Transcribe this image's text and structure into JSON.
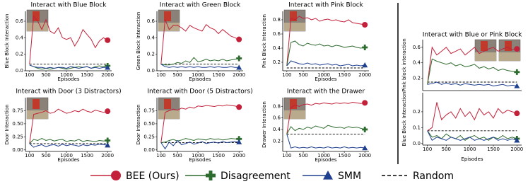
{
  "legend": [
    {
      "name": "BEE (Ours)",
      "color": "#c3213a",
      "marker": "circle"
    },
    {
      "name": "Disagreement",
      "color": "#2e6b2e",
      "marker": "plus"
    },
    {
      "name": "SMM",
      "color": "#1f3f8f",
      "marker": "triangle"
    },
    {
      "name": "Random",
      "color": "#000000",
      "style": "dashed"
    }
  ],
  "chart_data": [
    {
      "type": "line",
      "title": "Interact with Blue Block",
      "y_label": "Blue Block Interaction",
      "x_label": "Episodes",
      "x": [
        100,
        200,
        300,
        400,
        500,
        600,
        700,
        800,
        900,
        1000,
        1100,
        1200,
        1300,
        1400,
        1500,
        1600,
        1700,
        1800,
        1900,
        2000
      ],
      "xlim": [
        0,
        2100
      ],
      "xticks": [
        100,
        500,
        1000,
        1500,
        2000
      ],
      "ylim": [
        0,
        0.72
      ],
      "yticks": [
        {
          "value": 0,
          "label": "0.0"
        },
        0.2,
        0.4,
        0.6
      ],
      "random": 0.08,
      "series": [
        {
          "color": "#c3213a",
          "marker": "circle",
          "values": [
            0.08,
            0.66,
            0.6,
            0.5,
            0.62,
            0.48,
            0.45,
            0.52,
            0.4,
            0.38,
            0.4,
            0.3,
            0.38,
            0.5,
            0.44,
            0.38,
            0.28,
            0.36,
            0.4,
            0.37
          ]
        },
        {
          "color": "#2e6b2e",
          "marker": "plus",
          "values": [
            0.07,
            0.05,
            0.03,
            0.02,
            0.03,
            0.02,
            0.03,
            0.04,
            0.03,
            0.02,
            0.03,
            0.04,
            0.05,
            0.04,
            0.05,
            0.03,
            0.05,
            0.06,
            0.05,
            0.06
          ]
        },
        {
          "color": "#1f3f8f",
          "marker": "triangle",
          "values": [
            0.07,
            0.05,
            0.04,
            0.04,
            0.03,
            0.04,
            0.03,
            0.04,
            0.04,
            0.03,
            0.05,
            0.04,
            0.03,
            0.04,
            0.05,
            0.03,
            0.04,
            0.03,
            0.04,
            0.04
          ]
        }
      ]
    },
    {
      "type": "line",
      "title": "Interact with Green Block",
      "y_label": "Green Block Interaction",
      "x_label": "Episodes",
      "x": [
        100,
        200,
        300,
        400,
        500,
        600,
        700,
        800,
        900,
        1000,
        1100,
        1200,
        1300,
        1400,
        1500,
        1600,
        1700,
        1800,
        1900,
        2000
      ],
      "xlim": [
        0,
        2100
      ],
      "xticks": [
        100,
        500,
        1000,
        1500,
        2000
      ],
      "ylim": [
        0,
        0.72
      ],
      "yticks": [
        {
          "value": 0,
          "label": "0.0"
        },
        0.2,
        0.4,
        0.6
      ],
      "random": 0.08,
      "series": [
        {
          "color": "#c3213a",
          "marker": "circle",
          "values": [
            0.08,
            0.62,
            0.5,
            0.55,
            0.55,
            0.52,
            0.48,
            0.55,
            0.52,
            0.5,
            0.48,
            0.56,
            0.52,
            0.5,
            0.45,
            0.5,
            0.46,
            0.42,
            0.4,
            0.38
          ]
        },
        {
          "color": "#2e6b2e",
          "marker": "plus",
          "values": [
            0.08,
            0.07,
            0.07,
            0.08,
            0.1,
            0.09,
            0.12,
            0.1,
            0.16,
            0.11,
            0.12,
            0.14,
            0.12,
            0.13,
            0.12,
            0.14,
            0.12,
            0.13,
            0.14,
            0.15
          ]
        },
        {
          "color": "#1f3f8f",
          "marker": "triangle",
          "values": [
            0.08,
            0.05,
            0.04,
            0.05,
            0.04,
            0.05,
            0.04,
            0.05,
            0.04,
            0.05,
            0.04,
            0.04,
            0.05,
            0.04,
            0.05,
            0.04,
            0.04,
            0.05,
            0.04,
            0.04
          ]
        }
      ]
    },
    {
      "type": "line",
      "title": "Interact with Pink Block",
      "y_label": "Pink Block Interaction",
      "x_label": "Episodes",
      "x": [
        100,
        200,
        300,
        400,
        500,
        600,
        700,
        800,
        900,
        1000,
        1100,
        1200,
        1300,
        1400,
        1500,
        1600,
        1700,
        1800,
        1900,
        2000
      ],
      "xlim": [
        0,
        2100
      ],
      "xticks": [
        100,
        500,
        1000,
        1500,
        2000
      ],
      "ylim": [
        0.08,
        0.92
      ],
      "yticks": [
        0.2,
        0.4,
        0.6,
        0.8
      ],
      "random": 0.12,
      "series": [
        {
          "color": "#c3213a",
          "marker": "circle",
          "values": [
            0.15,
            0.82,
            0.8,
            0.85,
            0.82,
            0.83,
            0.8,
            0.82,
            0.78,
            0.8,
            0.81,
            0.79,
            0.8,
            0.78,
            0.77,
            0.8,
            0.76,
            0.75,
            0.74,
            0.73
          ]
        },
        {
          "color": "#2e6b2e",
          "marker": "plus",
          "values": [
            0.15,
            0.48,
            0.5,
            0.45,
            0.43,
            0.47,
            0.45,
            0.44,
            0.46,
            0.43,
            0.44,
            0.42,
            0.44,
            0.43,
            0.41,
            0.42,
            0.43,
            0.41,
            0.4,
            0.41
          ]
        },
        {
          "color": "#1f3f8f",
          "marker": "triangle",
          "values": [
            0.15,
            0.22,
            0.2,
            0.18,
            0.17,
            0.19,
            0.17,
            0.18,
            0.16,
            0.17,
            0.18,
            0.16,
            0.17,
            0.15,
            0.16,
            0.17,
            0.15,
            0.16,
            0.15,
            0.16
          ]
        }
      ]
    },
    {
      "type": "line",
      "title": "Interact with Door (3 Distractors)",
      "y_label": "Door Interaction",
      "x_label": "Episodes",
      "x": [
        100,
        200,
        300,
        400,
        500,
        600,
        700,
        800,
        900,
        1000,
        1100,
        1200,
        1300,
        1400,
        1500,
        1600,
        1700,
        1800,
        1900,
        2000
      ],
      "xlim": [
        0,
        2100
      ],
      "xticks": [
        100,
        500,
        1000,
        1500,
        2000
      ],
      "ylim": [
        -0.03,
        1.0
      ],
      "yticks": [
        {
          "value": 0,
          "label": "0.00"
        },
        0.25,
        {
          "value": 0.5,
          "label": "0.50"
        },
        0.75
      ],
      "random": 0.12,
      "series": [
        {
          "color": "#c3213a",
          "marker": "circle",
          "values": [
            0.12,
            0.68,
            0.7,
            0.72,
            0.75,
            0.7,
            0.72,
            0.78,
            0.74,
            0.7,
            0.72,
            0.75,
            0.73,
            0.78,
            0.74,
            0.72,
            0.76,
            0.74,
            0.72,
            0.74
          ]
        },
        {
          "color": "#2e6b2e",
          "marker": "plus",
          "values": [
            0.12,
            0.2,
            0.18,
            0.22,
            0.18,
            0.2,
            0.17,
            0.19,
            0.2,
            0.16,
            0.18,
            0.17,
            0.2,
            0.16,
            0.18,
            0.17,
            0.16,
            0.18,
            0.17,
            0.18
          ]
        },
        {
          "color": "#1f3f8f",
          "marker": "triangle",
          "values": [
            0.12,
            0.05,
            0.08,
            0.1,
            0.06,
            0.09,
            0.1,
            0.07,
            0.11,
            0.08,
            0.1,
            0.09,
            0.07,
            0.1,
            0.08,
            0.1,
            0.09,
            0.11,
            0.1,
            0.09
          ]
        }
      ]
    },
    {
      "type": "line",
      "title": "Interact with Door (5 Distractors)",
      "y_label": "Door Interaction",
      "x_label": "Episodes",
      "x": [
        100,
        200,
        300,
        400,
        500,
        600,
        700,
        800,
        900,
        1000,
        1100,
        1200,
        1300,
        1400,
        1500,
        1600,
        1700,
        1800,
        1900,
        2000
      ],
      "xlim": [
        0,
        2100
      ],
      "xticks": [
        100,
        500,
        1000,
        1500,
        2000
      ],
      "ylim": [
        -0.03,
        1.0
      ],
      "yticks": [
        {
          "value": 0,
          "label": "0.00"
        },
        0.25,
        {
          "value": 0.5,
          "label": "0.50"
        },
        0.75
      ],
      "random": 0.14,
      "series": [
        {
          "color": "#c3213a",
          "marker": "circle",
          "values": [
            0.14,
            0.72,
            0.75,
            0.78,
            0.76,
            0.8,
            0.78,
            0.82,
            0.8,
            0.84,
            0.83,
            0.85,
            0.84,
            0.83,
            0.85,
            0.84,
            0.86,
            0.85,
            0.84,
            0.82
          ]
        },
        {
          "color": "#2e6b2e",
          "marker": "plus",
          "values": [
            0.14,
            0.15,
            0.18,
            0.2,
            0.17,
            0.19,
            0.22,
            0.2,
            0.18,
            0.21,
            0.2,
            0.19,
            0.22,
            0.2,
            0.21,
            0.19,
            0.2,
            0.22,
            0.21,
            0.21
          ]
        },
        {
          "color": "#1f3f8f",
          "marker": "triangle",
          "values": [
            0.14,
            0.02,
            0.15,
            0.08,
            0.18,
            0.1,
            0.12,
            0.15,
            0.11,
            0.13,
            0.16,
            0.12,
            0.14,
            0.15,
            0.13,
            0.16,
            0.14,
            0.15,
            0.16,
            0.15
          ]
        }
      ]
    },
    {
      "type": "line",
      "title": "Interact with the Drawer",
      "y_label": "Drawer Interaction",
      "x_label": "Episodes",
      "x": [
        100,
        200,
        300,
        400,
        500,
        600,
        700,
        800,
        900,
        1000,
        1100,
        1200,
        1300,
        1400,
        1500,
        1600,
        1700,
        1800,
        1900,
        2000
      ],
      "xlim": [
        0,
        2100
      ],
      "xticks": [
        100,
        500,
        1000,
        1500,
        2000
      ],
      "ylim": [
        0.02,
        0.95
      ],
      "yticks": [
        0.2,
        0.4,
        0.6,
        0.8
      ],
      "random": 0.32,
      "series": [
        {
          "color": "#c3213a",
          "marker": "circle",
          "values": [
            0.32,
            0.78,
            0.82,
            0.8,
            0.83,
            0.84,
            0.82,
            0.85,
            0.84,
            0.86,
            0.85,
            0.84,
            0.86,
            0.85,
            0.86,
            0.85,
            0.87,
            0.86,
            0.85,
            0.86
          ]
        },
        {
          "color": "#2e6b2e",
          "marker": "plus",
          "values": [
            0.32,
            0.45,
            0.38,
            0.42,
            0.4,
            0.44,
            0.42,
            0.46,
            0.44,
            0.42,
            0.47,
            0.45,
            0.43,
            0.44,
            0.42,
            0.45,
            0.43,
            0.44,
            0.42,
            0.4
          ]
        },
        {
          "color": "#1f3f8f",
          "marker": "triangle",
          "values": [
            0.32,
            0.08,
            0.1,
            0.08,
            0.09,
            0.08,
            0.1,
            0.08,
            0.09,
            0.08,
            0.1,
            0.08,
            0.09,
            0.08,
            0.1,
            0.08,
            0.09,
            0.08,
            0.09,
            0.08
          ]
        }
      ]
    },
    {
      "type": "line",
      "title": "Interact with Blue or Pink Block",
      "y_label": "Pink block interaction",
      "x": [
        100,
        200,
        300,
        400,
        500,
        600,
        700,
        800,
        900,
        1000,
        1100,
        1200,
        1300,
        1400,
        1500,
        1600,
        1700,
        1800,
        1900,
        2000
      ],
      "xlim": [
        0,
        2100
      ],
      "ylim": [
        0.04,
        0.7
      ],
      "yticks": [
        0.2,
        0.4,
        0.6
      ],
      "random": 0.15,
      "series": [
        {
          "color": "#c3213a",
          "marker": "circle",
          "values": [
            0.12,
            0.6,
            0.5,
            0.55,
            0.6,
            0.52,
            0.55,
            0.58,
            0.5,
            0.55,
            0.6,
            0.52,
            0.55,
            0.58,
            0.6,
            0.55,
            0.58,
            0.6,
            0.57,
            0.58
          ]
        },
        {
          "color": "#2e6b2e",
          "marker": "plus",
          "values": [
            0.12,
            0.45,
            0.42,
            0.4,
            0.38,
            0.4,
            0.36,
            0.38,
            0.35,
            0.36,
            0.38,
            0.33,
            0.35,
            0.32,
            0.34,
            0.3,
            0.32,
            0.3,
            0.29,
            0.28
          ]
        },
        {
          "color": "#1f3f8f",
          "marker": "triangle",
          "values": [
            0.12,
            0.13,
            0.15,
            0.12,
            0.14,
            0.12,
            0.13,
            0.11,
            0.13,
            0.12,
            0.11,
            0.12,
            0.11,
            0.12,
            0.1,
            0.11,
            0.12,
            0.1,
            0.11,
            0.1
          ]
        }
      ]
    },
    {
      "type": "line",
      "y_label": "Blue Block Interaction",
      "x_label": "Episodes",
      "x": [
        100,
        200,
        300,
        400,
        500,
        600,
        700,
        800,
        900,
        1000,
        1100,
        1200,
        1300,
        1400,
        1500,
        1600,
        1700,
        1800,
        1900,
        2000
      ],
      "xlim": [
        0,
        2100
      ],
      "xticks": [
        100,
        500,
        1000,
        1500,
        2000
      ],
      "ylim": [
        -0.01,
        0.32
      ],
      "yticks": [
        {
          "value": 0,
          "label": "0.0"
        },
        0.1,
        0.2
      ],
      "random": 0.08,
      "series": [
        {
          "color": "#c3213a",
          "marker": "circle",
          "values": [
            0.08,
            0.1,
            0.26,
            0.15,
            0.18,
            0.2,
            0.16,
            0.22,
            0.17,
            0.2,
            0.15,
            0.22,
            0.18,
            0.2,
            0.16,
            0.22,
            0.19,
            0.21,
            0.2,
            0.19
          ]
        },
        {
          "color": "#2e6b2e",
          "marker": "plus",
          "values": [
            0.08,
            0.04,
            0.05,
            0.03,
            0.06,
            0.04,
            0.03,
            0.05,
            0.02,
            0.04,
            0.05,
            0.03,
            0.04,
            0.02,
            0.04,
            0.03,
            0.05,
            0.03,
            0.04,
            0.03
          ]
        },
        {
          "color": "#1f3f8f",
          "marker": "triangle",
          "values": [
            0.08,
            0.02,
            0.04,
            0.03,
            0.02,
            0.04,
            0.03,
            0.02,
            0.03,
            0.04,
            0.02,
            0.03,
            0.02,
            0.03,
            0.04,
            0.02,
            0.03,
            0.02,
            0.03,
            0.02
          ]
        }
      ]
    }
  ]
}
